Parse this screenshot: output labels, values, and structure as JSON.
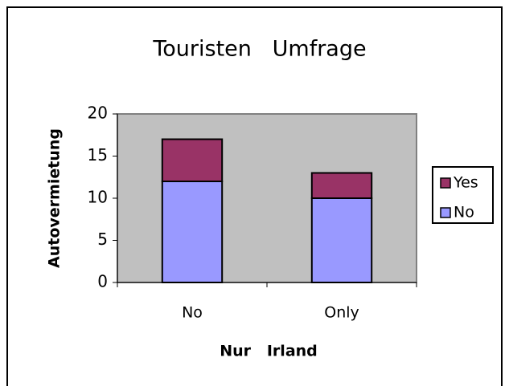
{
  "chart_data": {
    "type": "stacked-bar",
    "title": "Touristen   Umfrage",
    "x_label": "Nur   Irland",
    "y_label": "Autovermietung",
    "categories": [
      "No",
      "Only"
    ],
    "series": [
      {
        "name": "No",
        "color": "#9999ff",
        "values": [
          12,
          10
        ]
      },
      {
        "name": "Yes",
        "color": "#993366",
        "values": [
          5,
          3
        ]
      }
    ],
    "ylim": [
      0,
      20
    ],
    "yticks": [
      0,
      5,
      10,
      15,
      20
    ],
    "legend": "right"
  }
}
